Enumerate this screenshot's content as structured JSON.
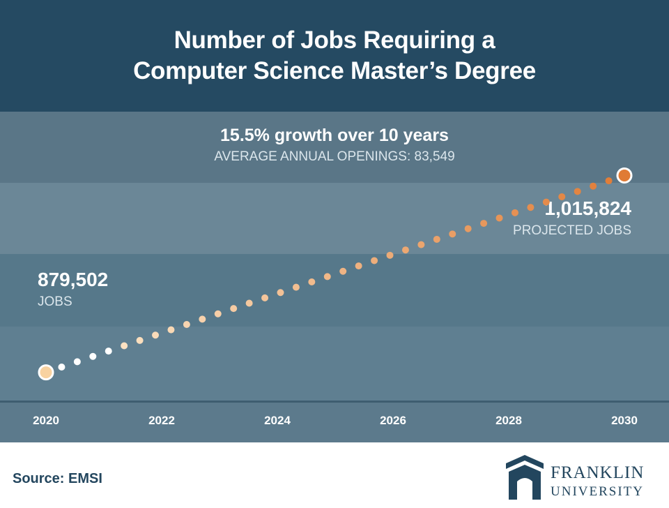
{
  "header": {
    "title_line1": "Number of Jobs Requiring a",
    "title_line2": "Computer Science Master’s Degree"
  },
  "stats": {
    "headline": "15.5% growth over 10 years",
    "subline": "AVERAGE ANNUAL OPENINGS: 83,549"
  },
  "start_point": {
    "value_label": "879,502",
    "caption": "JOBS"
  },
  "end_point": {
    "value_label": "1,015,824",
    "caption": "PROJECTED JOBS"
  },
  "source": "Source: EMSI",
  "logo": {
    "line1": "FRANKLIN",
    "line2": "UNIVERSITY"
  },
  "colors": {
    "header_bg": "#254a62",
    "band_1": "#5a7687",
    "band_2": "#6b8797",
    "band_3": "#56788a",
    "axis_bg": "#5c7a8c",
    "dot_start": "#f8d2a0",
    "dot_end": "#e07b35",
    "navy": "#23465e"
  },
  "chart_data": {
    "type": "line",
    "x": [
      2020,
      2030
    ],
    "values": [
      879502,
      1015824
    ],
    "xlim": [
      2020,
      2030
    ],
    "xticks": [
      2020,
      2022,
      2024,
      2026,
      2028,
      2030
    ],
    "ylim": [
      860000,
      1060000
    ],
    "grid": false
  }
}
